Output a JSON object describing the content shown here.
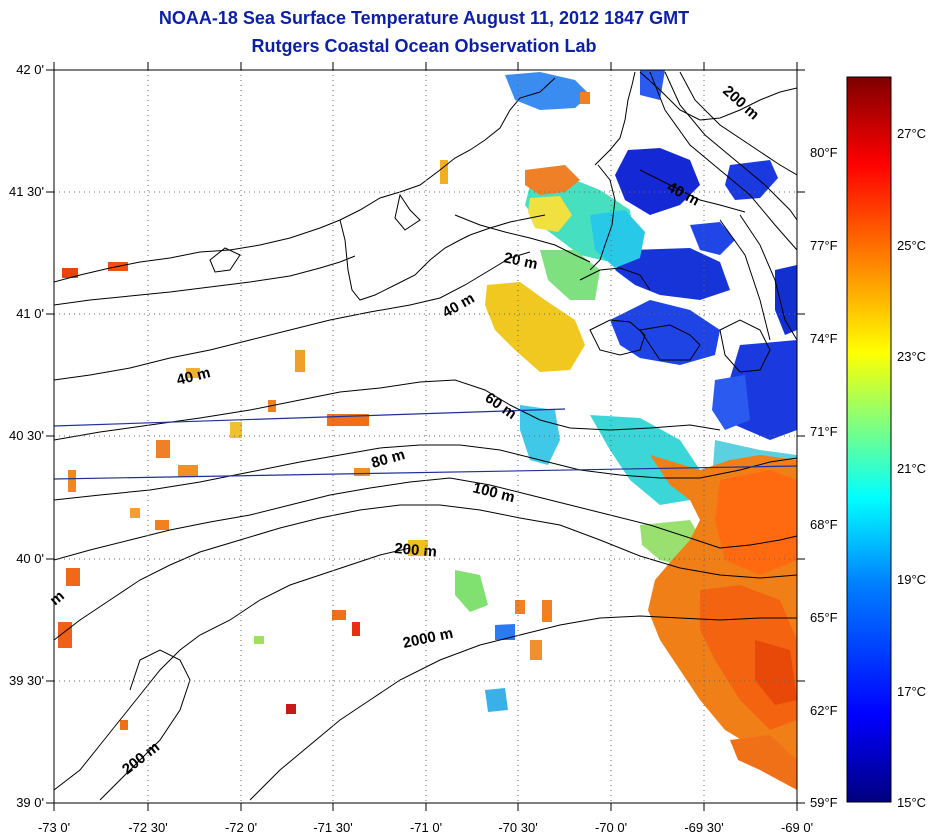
{
  "title": {
    "line1": "NOAA-18 Sea Surface Temperature August 11, 2012 1847 GMT",
    "line2": "Rutgers Coastal Ocean Observation Lab"
  },
  "axes": {
    "lon_labels": [
      "-73 0'",
      "-72 30'",
      "-72 0'",
      "-71 30'",
      "-71 0'",
      "-70 30'",
      "-70 0'",
      "-69 30'",
      "-69 0'"
    ],
    "lat_labels": [
      "42 0'",
      "41 30'",
      "41 0'",
      "40 30'",
      "40 0'",
      "39 30'",
      "39 0'"
    ],
    "lon_range": [
      -73.0,
      -69.0
    ],
    "lat_range": [
      39.0,
      42.0
    ]
  },
  "contour_labels": [
    "20 m",
    "40 m",
    "40 m",
    "40 m",
    "60 m",
    "80 m",
    "100 m",
    "200 m",
    "200 m",
    "200 m",
    "2000 m",
    "m"
  ],
  "colorbar": {
    "celsius_labels": [
      "27°C",
      "25°C",
      "23°C",
      "21°C",
      "19°C",
      "17°C",
      "15°C"
    ],
    "fahrenheit_labels": [
      "80°F",
      "77°F",
      "74°F",
      "71°F",
      "68°F",
      "65°F",
      "62°F",
      "59°F"
    ],
    "range_c": [
      15,
      28.3
    ],
    "colors": [
      "#00007f",
      "#0000ff",
      "#007fff",
      "#00ffff",
      "#7fff7f",
      "#ffff00",
      "#ff7f00",
      "#ff0000",
      "#7f0000"
    ]
  }
}
